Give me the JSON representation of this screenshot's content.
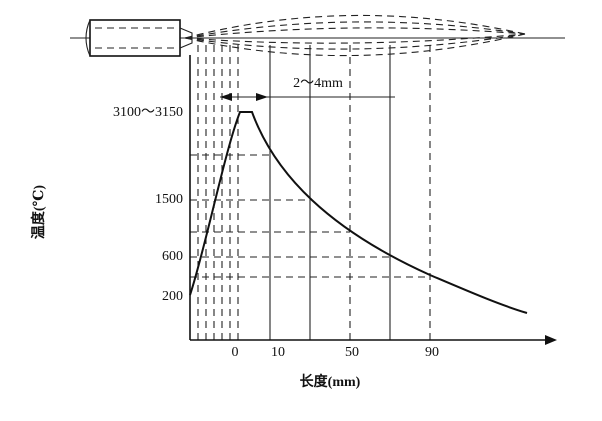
{
  "diagram": {
    "y_axis_title": "温度(℃)",
    "x_axis_title": "长度(mm)",
    "annotation": "2～4mm",
    "y_labels": [
      "3100～3150",
      "1500",
      "600",
      "200"
    ],
    "x_labels": [
      "0",
      "10",
      "50",
      "90"
    ]
  }
}
